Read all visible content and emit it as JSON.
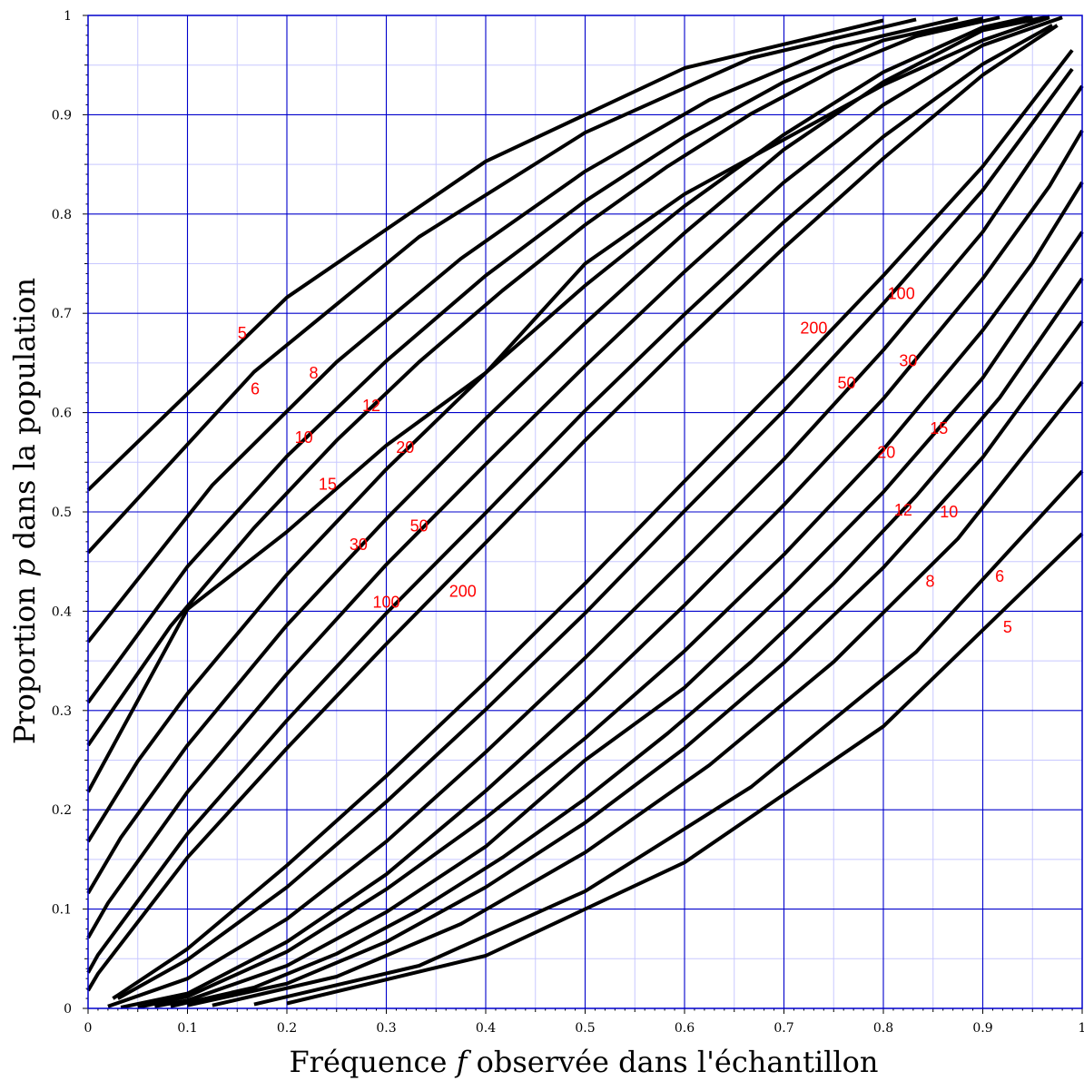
{
  "chart_data": {
    "type": "line",
    "xlabel_parts": [
      "Fréquence ",
      "f",
      " observée dans l'échantillon"
    ],
    "ylabel_parts": [
      "Proportion ",
      "p",
      " dans la population"
    ],
    "xlim": [
      0,
      1
    ],
    "ylim": [
      0,
      1
    ],
    "grid": true,
    "x_ticks": [
      "0",
      "0.1",
      "0.2",
      "0.3",
      "0.4",
      "0.5",
      "0.6",
      "0.7",
      "0.8",
      "0.9",
      "1"
    ],
    "y_ticks": [
      "0",
      "0.1",
      "0.2",
      "0.3",
      "0.4",
      "0.5",
      "0.6",
      "0.7",
      "0.8",
      "0.9",
      "1"
    ],
    "series": [
      {
        "name": "5",
        "branch": "upper",
        "points": [
          [
            0,
            0.522
          ],
          [
            0.2,
            0.716
          ],
          [
            0.4,
            0.853
          ],
          [
            0.6,
            0.947
          ],
          [
            0.8,
            0.995
          ]
        ]
      },
      {
        "name": "6",
        "branch": "upper",
        "points": [
          [
            0,
            0.459
          ],
          [
            0.167,
            0.641
          ],
          [
            0.333,
            0.777
          ],
          [
            0.5,
            0.882
          ],
          [
            0.667,
            0.957
          ],
          [
            0.833,
            0.996
          ]
        ]
      },
      {
        "name": "8",
        "branch": "upper",
        "points": [
          [
            0,
            0.369
          ],
          [
            0.125,
            0.527
          ],
          [
            0.25,
            0.651
          ],
          [
            0.375,
            0.755
          ],
          [
            0.5,
            0.843
          ],
          [
            0.625,
            0.915
          ],
          [
            0.75,
            0.968
          ],
          [
            0.875,
            0.997
          ]
        ]
      },
      {
        "name": "10",
        "branch": "upper",
        "points": [
          [
            0,
            0.308
          ],
          [
            0.1,
            0.445
          ],
          [
            0.2,
            0.556
          ],
          [
            0.3,
            0.652
          ],
          [
            0.4,
            0.738
          ],
          [
            0.5,
            0.813
          ],
          [
            0.6,
            0.878
          ],
          [
            0.7,
            0.933
          ],
          [
            0.8,
            0.975
          ],
          [
            0.9,
            0.997
          ]
        ]
      },
      {
        "name": "12",
        "branch": "upper",
        "points": [
          [
            0,
            0.265
          ],
          [
            0.083,
            0.385
          ],
          [
            0.167,
            0.484
          ],
          [
            0.25,
            0.572
          ],
          [
            0.333,
            0.651
          ],
          [
            0.417,
            0.723
          ],
          [
            0.5,
            0.789
          ],
          [
            0.583,
            0.848
          ],
          [
            0.667,
            0.901
          ],
          [
            0.75,
            0.945
          ],
          [
            0.833,
            0.979
          ],
          [
            0.917,
            0.998
          ]
        ]
      },
      {
        "name": "15",
        "branch": "upper",
        "points": [
          [
            0,
            0.218
          ],
          [
            0.1,
            0.402
          ],
          [
            0.2,
            0.48
          ],
          [
            0.3,
            0.567
          ],
          [
            0.4,
            0.64
          ],
          [
            0.5,
            0.75
          ],
          [
            0.6,
            0.82
          ],
          [
            0.7,
            0.875
          ],
          [
            0.8,
            0.93
          ],
          [
            0.9,
            0.975
          ],
          [
            0.967,
            0.998
          ]
        ]
      },
      {
        "name": "20",
        "branch": "upper",
        "points": [
          [
            0,
            0.168
          ],
          [
            0.05,
            0.249
          ],
          [
            0.1,
            0.317
          ],
          [
            0.2,
            0.437
          ],
          [
            0.3,
            0.543
          ],
          [
            0.4,
            0.64
          ],
          [
            0.5,
            0.728
          ],
          [
            0.6,
            0.808
          ],
          [
            0.7,
            0.88
          ],
          [
            0.8,
            0.943
          ],
          [
            0.9,
            0.988
          ],
          [
            0.95,
            0.999
          ]
        ]
      },
      {
        "name": "30",
        "branch": "upper",
        "points": [
          [
            0,
            0.116
          ],
          [
            0.033,
            0.172
          ],
          [
            0.1,
            0.265
          ],
          [
            0.2,
            0.386
          ],
          [
            0.3,
            0.493
          ],
          [
            0.4,
            0.594
          ],
          [
            0.5,
            0.69
          ],
          [
            0.6,
            0.781
          ],
          [
            0.7,
            0.865
          ],
          [
            0.8,
            0.933
          ],
          [
            0.9,
            0.985
          ],
          [
            0.967,
            0.999
          ]
        ]
      },
      {
        "name": "50",
        "branch": "upper",
        "points": [
          [
            0,
            0.071
          ],
          [
            0.02,
            0.106
          ],
          [
            0.1,
            0.218
          ],
          [
            0.2,
            0.337
          ],
          [
            0.3,
            0.447
          ],
          [
            0.4,
            0.548
          ],
          [
            0.5,
            0.647
          ],
          [
            0.6,
            0.742
          ],
          [
            0.7,
            0.832
          ],
          [
            0.8,
            0.91
          ],
          [
            0.9,
            0.97
          ],
          [
            0.98,
            0.998
          ]
        ]
      },
      {
        "name": "100",
        "branch": "upper",
        "points": [
          [
            0,
            0.036
          ],
          [
            0.01,
            0.054
          ],
          [
            0.1,
            0.176
          ],
          [
            0.2,
            0.29
          ],
          [
            0.3,
            0.398
          ],
          [
            0.4,
            0.499
          ],
          [
            0.5,
            0.602
          ],
          [
            0.6,
            0.699
          ],
          [
            0.7,
            0.792
          ],
          [
            0.8,
            0.878
          ],
          [
            0.9,
            0.951
          ],
          [
            0.97,
            0.99
          ]
        ]
      },
      {
        "name": "200",
        "branch": "upper",
        "points": [
          [
            0,
            0.018
          ],
          [
            0.01,
            0.035
          ],
          [
            0.1,
            0.152
          ],
          [
            0.2,
            0.262
          ],
          [
            0.3,
            0.367
          ],
          [
            0.4,
            0.469
          ],
          [
            0.5,
            0.572
          ],
          [
            0.6,
            0.671
          ],
          [
            0.7,
            0.766
          ],
          [
            0.8,
            0.856
          ],
          [
            0.9,
            0.94
          ],
          [
            0.975,
            0.99
          ]
        ]
      },
      {
        "name": "200",
        "branch": "lower",
        "points": [
          [
            0.025,
            0.01
          ],
          [
            0.1,
            0.06
          ],
          [
            0.2,
            0.144
          ],
          [
            0.3,
            0.234
          ],
          [
            0.4,
            0.329
          ],
          [
            0.5,
            0.428
          ],
          [
            0.6,
            0.531
          ],
          [
            0.7,
            0.633
          ],
          [
            0.8,
            0.738
          ],
          [
            0.9,
            0.848
          ],
          [
            0.99,
            0.965
          ]
        ]
      },
      {
        "name": "100",
        "branch": "lower",
        "points": [
          [
            0.03,
            0.01
          ],
          [
            0.1,
            0.049
          ],
          [
            0.2,
            0.122
          ],
          [
            0.3,
            0.208
          ],
          [
            0.4,
            0.301
          ],
          [
            0.5,
            0.398
          ],
          [
            0.6,
            0.501
          ],
          [
            0.7,
            0.602
          ],
          [
            0.8,
            0.71
          ],
          [
            0.9,
            0.824
          ],
          [
            0.99,
            0.946
          ]
        ]
      },
      {
        "name": "50",
        "branch": "lower",
        "points": [
          [
            0.02,
            0.002
          ],
          [
            0.1,
            0.03
          ],
          [
            0.2,
            0.09
          ],
          [
            0.3,
            0.168
          ],
          [
            0.4,
            0.258
          ],
          [
            0.5,
            0.353
          ],
          [
            0.6,
            0.452
          ],
          [
            0.7,
            0.553
          ],
          [
            0.8,
            0.663
          ],
          [
            0.9,
            0.782
          ],
          [
            0.98,
            0.9
          ],
          [
            1,
            0.929
          ]
        ]
      },
      {
        "name": "30",
        "branch": "lower",
        "points": [
          [
            0.033,
            0.001
          ],
          [
            0.1,
            0.015
          ],
          [
            0.2,
            0.067
          ],
          [
            0.3,
            0.135
          ],
          [
            0.4,
            0.219
          ],
          [
            0.5,
            0.31
          ],
          [
            0.6,
            0.406
          ],
          [
            0.7,
            0.507
          ],
          [
            0.8,
            0.614
          ],
          [
            0.9,
            0.735
          ],
          [
            0.967,
            0.828
          ],
          [
            1,
            0.884
          ]
        ]
      },
      {
        "name": "20",
        "branch": "lower",
        "points": [
          [
            0.05,
            0.001
          ],
          [
            0.1,
            0.012
          ],
          [
            0.2,
            0.057
          ],
          [
            0.3,
            0.12
          ],
          [
            0.4,
            0.192
          ],
          [
            0.5,
            0.272
          ],
          [
            0.6,
            0.36
          ],
          [
            0.7,
            0.457
          ],
          [
            0.8,
            0.563
          ],
          [
            0.9,
            0.683
          ],
          [
            0.95,
            0.751
          ],
          [
            1,
            0.832
          ]
        ]
      },
      {
        "name": "15",
        "branch": "lower",
        "points": [
          [
            0.067,
            0.002
          ],
          [
            0.1,
            0.008
          ],
          [
            0.2,
            0.043
          ],
          [
            0.3,
            0.097
          ],
          [
            0.4,
            0.163
          ],
          [
            0.5,
            0.25
          ],
          [
            0.6,
            0.323
          ],
          [
            0.7,
            0.418
          ],
          [
            0.8,
            0.52
          ],
          [
            0.9,
            0.635
          ],
          [
            1,
            0.782
          ]
        ]
      },
      {
        "name": "12",
        "branch": "lower",
        "points": [
          [
            0.083,
            0.002
          ],
          [
            0.167,
            0.021
          ],
          [
            0.25,
            0.055
          ],
          [
            0.333,
            0.099
          ],
          [
            0.417,
            0.152
          ],
          [
            0.5,
            0.211
          ],
          [
            0.583,
            0.277
          ],
          [
            0.667,
            0.349
          ],
          [
            0.75,
            0.428
          ],
          [
            0.833,
            0.516
          ],
          [
            0.917,
            0.615
          ],
          [
            1,
            0.735
          ]
        ]
      },
      {
        "name": "10",
        "branch": "lower",
        "points": [
          [
            0.1,
            0.003
          ],
          [
            0.2,
            0.025
          ],
          [
            0.3,
            0.067
          ],
          [
            0.4,
            0.122
          ],
          [
            0.5,
            0.187
          ],
          [
            0.6,
            0.262
          ],
          [
            0.7,
            0.348
          ],
          [
            0.8,
            0.444
          ],
          [
            0.9,
            0.555
          ],
          [
            1,
            0.692
          ]
        ]
      },
      {
        "name": "8",
        "branch": "lower",
        "points": [
          [
            0.125,
            0.003
          ],
          [
            0.25,
            0.032
          ],
          [
            0.375,
            0.085
          ],
          [
            0.5,
            0.157
          ],
          [
            0.625,
            0.245
          ],
          [
            0.75,
            0.349
          ],
          [
            0.875,
            0.473
          ],
          [
            1,
            0.631
          ]
        ]
      },
      {
        "name": "6",
        "branch": "lower",
        "points": [
          [
            0.167,
            0.004
          ],
          [
            0.333,
            0.043
          ],
          [
            0.5,
            0.118
          ],
          [
            0.667,
            0.223
          ],
          [
            0.833,
            0.359
          ],
          [
            1,
            0.541
          ]
        ]
      },
      {
        "name": "5",
        "branch": "lower",
        "points": [
          [
            0.2,
            0.005
          ],
          [
            0.4,
            0.053
          ],
          [
            0.6,
            0.147
          ],
          [
            0.8,
            0.284
          ],
          [
            1,
            0.478
          ]
        ]
      }
    ],
    "annotations": [
      {
        "text": "5",
        "x": 0.155,
        "y": 0.68
      },
      {
        "text": "6",
        "x": 0.168,
        "y": 0.624
      },
      {
        "text": "8",
        "x": 0.227,
        "y": 0.64
      },
      {
        "text": "10",
        "x": 0.217,
        "y": 0.575
      },
      {
        "text": "12",
        "x": 0.285,
        "y": 0.607
      },
      {
        "text": "15",
        "x": 0.241,
        "y": 0.528
      },
      {
        "text": "20",
        "x": 0.319,
        "y": 0.565
      },
      {
        "text": "30",
        "x": 0.272,
        "y": 0.467
      },
      {
        "text": "50",
        "x": 0.333,
        "y": 0.486
      },
      {
        "text": "100",
        "x": 0.3,
        "y": 0.409
      },
      {
        "text": "200",
        "x": 0.377,
        "y": 0.42
      },
      {
        "text": "100",
        "x": 0.818,
        "y": 0.72
      },
      {
        "text": "200",
        "x": 0.73,
        "y": 0.685
      },
      {
        "text": "30",
        "x": 0.825,
        "y": 0.652
      },
      {
        "text": "50",
        "x": 0.763,
        "y": 0.63
      },
      {
        "text": "15",
        "x": 0.856,
        "y": 0.584
      },
      {
        "text": "20",
        "x": 0.803,
        "y": 0.56
      },
      {
        "text": "12",
        "x": 0.82,
        "y": 0.502
      },
      {
        "text": "10",
        "x": 0.866,
        "y": 0.5
      },
      {
        "text": "8",
        "x": 0.847,
        "y": 0.43
      },
      {
        "text": "6",
        "x": 0.917,
        "y": 0.435
      },
      {
        "text": "5",
        "x": 0.925,
        "y": 0.384
      }
    ],
    "colors": {
      "major_grid": "#0000cc",
      "minor_grid": "#c8c8ff",
      "curves": "#000000",
      "labels": "#ff0000"
    }
  }
}
